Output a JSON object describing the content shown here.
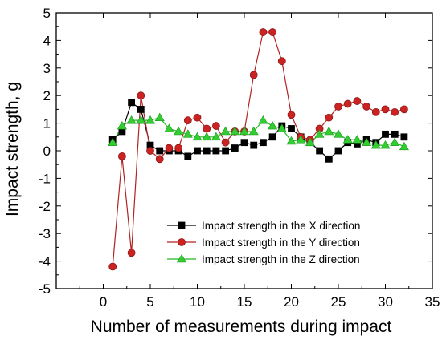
{
  "chart_data": {
    "type": "line",
    "title": "",
    "xlabel": "Number of measurements during impact",
    "ylabel": "Impact strength, g",
    "xlim": [
      -5,
      35
    ],
    "ylim": [
      -5,
      5
    ],
    "xticks": [
      0,
      5,
      10,
      15,
      20,
      25,
      30,
      35
    ],
    "yticks": [
      -5,
      -4,
      -3,
      -2,
      -1,
      0,
      1,
      2,
      3,
      4,
      5
    ],
    "x_tick_labels": [
      "0",
      "5",
      "10",
      "15",
      "20",
      "25",
      "30",
      "35"
    ],
    "y_tick_labels": [
      "-5",
      "-4",
      "-3",
      "-2",
      "-1",
      "0",
      "1",
      "2",
      "3",
      "4",
      "5"
    ],
    "grid": false,
    "legend_position": "bottom-right",
    "x": [
      1,
      2,
      3,
      4,
      5,
      6,
      7,
      8,
      9,
      10,
      11,
      12,
      13,
      14,
      15,
      16,
      17,
      18,
      19,
      20,
      21,
      22,
      23,
      24,
      25,
      26,
      27,
      28,
      29,
      30,
      31,
      32
    ],
    "series": [
      {
        "name": "Impact strength in the X direction",
        "marker": "square",
        "line_color": "#000000",
        "marker_color": "#000000",
        "values": [
          0.4,
          0.7,
          1.75,
          1.5,
          0.2,
          0.0,
          0.0,
          0.0,
          -0.2,
          0.0,
          0.0,
          0.0,
          0.0,
          0.1,
          0.3,
          0.2,
          0.3,
          0.5,
          0.9,
          0.8,
          0.5,
          0.3,
          0.0,
          -0.3,
          0.0,
          0.3,
          0.25,
          0.4,
          0.3,
          0.6,
          0.6,
          0.5
        ]
      },
      {
        "name": "Impact strength in the Y direction",
        "marker": "circle",
        "line_color": "#b22222",
        "marker_color": "#cc2222",
        "values": [
          -4.2,
          -0.2,
          -3.7,
          2.0,
          0.0,
          -0.3,
          0.1,
          0.1,
          1.1,
          1.2,
          0.8,
          0.9,
          0.3,
          0.7,
          0.7,
          2.75,
          4.3,
          4.3,
          3.25,
          1.3,
          0.5,
          0.4,
          0.8,
          1.2,
          1.6,
          1.7,
          1.8,
          1.6,
          1.4,
          1.5,
          1.4,
          1.5
        ]
      },
      {
        "name": "Impact strength in the Z direction",
        "marker": "triangle",
        "line_color": "#22bb22",
        "marker_color": "#33cc33",
        "values": [
          0.3,
          0.9,
          1.1,
          1.1,
          1.1,
          1.2,
          0.8,
          0.7,
          0.6,
          0.5,
          0.5,
          0.5,
          0.7,
          0.7,
          0.7,
          0.7,
          1.1,
          0.9,
          0.8,
          0.35,
          0.4,
          0.3,
          0.6,
          0.7,
          0.6,
          0.4,
          0.4,
          0.3,
          0.2,
          0.2,
          0.3,
          0.15
        ]
      }
    ]
  }
}
